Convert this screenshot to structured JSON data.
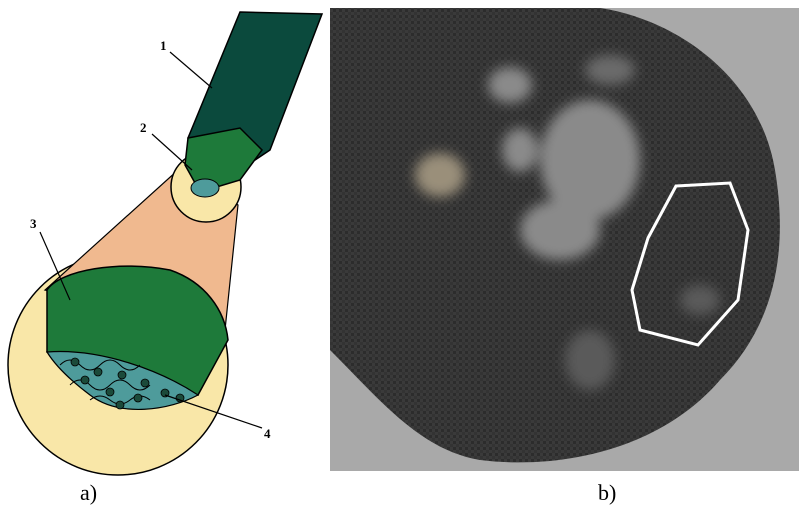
{
  "figure": {
    "diagram": {
      "labels": [
        "1",
        "2",
        "3",
        "4"
      ],
      "caption": "a)"
    },
    "photo": {
      "caption": "b)"
    }
  }
}
